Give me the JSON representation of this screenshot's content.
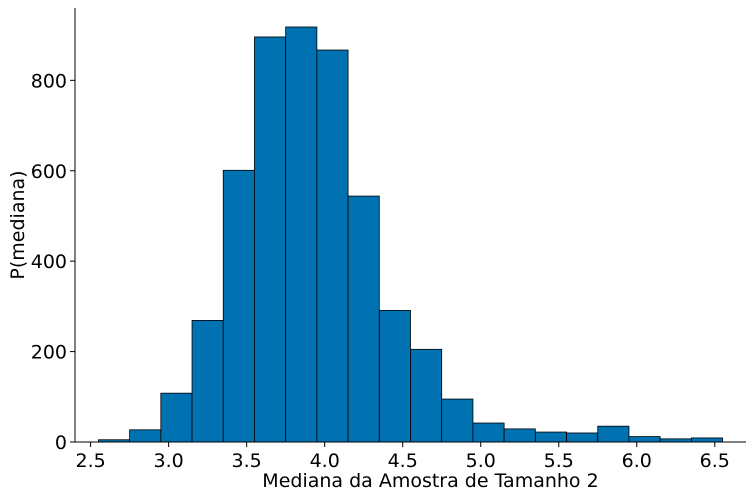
{
  "chart_data": {
    "type": "bar",
    "xlabel": "Mediana da Amostra de Tamanho 2",
    "ylabel": "P(mediana)",
    "xlim": [
      2.4,
      6.7
    ],
    "ylim": [
      0,
      960
    ],
    "xticks": [
      2.5,
      3.0,
      3.5,
      4.0,
      4.5,
      5.0,
      5.5,
      6.0,
      6.5
    ],
    "xtick_labels": [
      "2.5",
      "3.0",
      "3.5",
      "4.0",
      "4.5",
      "5.0",
      "5.5",
      "6.0",
      "6.5"
    ],
    "yticks": [
      0,
      200,
      400,
      600,
      800
    ],
    "ytick_labels": [
      "0",
      "200",
      "400",
      "600",
      "800"
    ],
    "grid": false,
    "bar_color": "#0072b2",
    "edge_color": "#000000",
    "bins": [
      {
        "x0": 2.55,
        "x1": 2.75,
        "value": 5
      },
      {
        "x0": 2.75,
        "x1": 2.95,
        "value": 27
      },
      {
        "x0": 2.95,
        "x1": 3.15,
        "value": 108
      },
      {
        "x0": 3.15,
        "x1": 3.35,
        "value": 269
      },
      {
        "x0": 3.35,
        "x1": 3.55,
        "value": 601
      },
      {
        "x0": 3.55,
        "x1": 3.75,
        "value": 896
      },
      {
        "x0": 3.75,
        "x1": 3.95,
        "value": 918
      },
      {
        "x0": 3.95,
        "x1": 4.15,
        "value": 867
      },
      {
        "x0": 4.15,
        "x1": 4.35,
        "value": 544
      },
      {
        "x0": 4.35,
        "x1": 4.55,
        "value": 291
      },
      {
        "x0": 4.55,
        "x1": 4.75,
        "value": 205
      },
      {
        "x0": 4.75,
        "x1": 4.95,
        "value": 95
      },
      {
        "x0": 4.95,
        "x1": 5.15,
        "value": 42
      },
      {
        "x0": 5.15,
        "x1": 5.35,
        "value": 29
      },
      {
        "x0": 5.35,
        "x1": 5.55,
        "value": 22
      },
      {
        "x0": 5.55,
        "x1": 5.75,
        "value": 20
      },
      {
        "x0": 5.75,
        "x1": 5.95,
        "value": 35
      },
      {
        "x0": 5.95,
        "x1": 6.15,
        "value": 12
      },
      {
        "x0": 6.15,
        "x1": 6.35,
        "value": 7
      },
      {
        "x0": 6.35,
        "x1": 6.55,
        "value": 9
      }
    ]
  }
}
